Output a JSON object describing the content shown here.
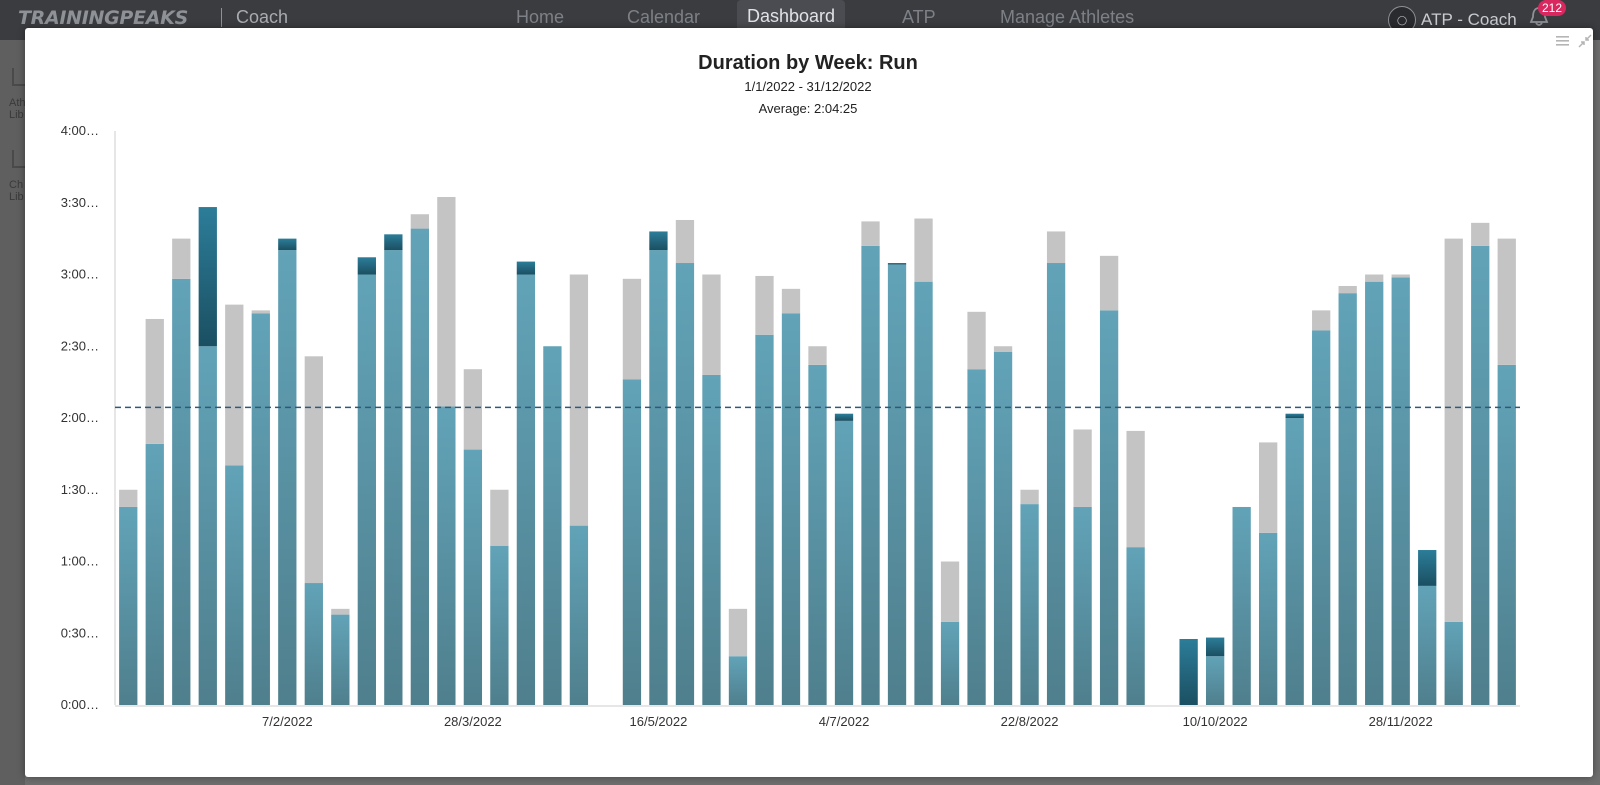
{
  "app": {
    "logo": "TRAININGPEAKS",
    "product": "Coach",
    "nav": [
      "Home",
      "Calendar",
      "Dashboard",
      "ATP",
      "Manage Athletes"
    ],
    "active_nav": "Dashboard",
    "user_label": "ATP - Coach",
    "notification_count": "212"
  },
  "sidebar": {
    "items": [
      {
        "label": "Ath",
        "label2": "Lib"
      },
      {
        "label": "Ch",
        "label2": "Lib"
      }
    ]
  },
  "colors": {
    "completed": "#5a9bb0",
    "over_plan": "#1f5f77",
    "planned": "#c4c4c4",
    "average_line": "#2e5a7a"
  },
  "chart_data": {
    "type": "bar",
    "title": "Duration by Week: Run",
    "subtitle": "1/1/2022 - 31/12/2022",
    "average_label": "Average: 2:04:25",
    "average_hours": 2.074,
    "ylim": [
      0,
      4
    ],
    "y_ticks": [
      {
        "value": 0,
        "label": "0:00…"
      },
      {
        "value": 0.5,
        "label": "0:30…"
      },
      {
        "value": 1,
        "label": "1:00…"
      },
      {
        "value": 1.5,
        "label": "1:30…"
      },
      {
        "value": 2,
        "label": "2:00…"
      },
      {
        "value": 2.5,
        "label": "2:30…"
      },
      {
        "value": 3,
        "label": "3:00…"
      },
      {
        "value": 3.5,
        "label": "3:30…"
      },
      {
        "value": 4,
        "label": "4:00…"
      }
    ],
    "x_ticks": [
      {
        "week": 6.5,
        "label": "7/2/2022"
      },
      {
        "week": 13.5,
        "label": "28/3/2022"
      },
      {
        "week": 20.5,
        "label": "16/5/2022"
      },
      {
        "week": 27.5,
        "label": "4/7/2022"
      },
      {
        "week": 34.5,
        "label": "22/8/2022"
      },
      {
        "week": 41.5,
        "label": "10/10/2022"
      },
      {
        "week": 48.5,
        "label": "28/11/2022"
      }
    ],
    "series": [
      {
        "key": "completed",
        "values": [
          1.38,
          1.82,
          2.97,
          2.5,
          1.67,
          2.73,
          3.17,
          0.85,
          0.63,
          3.0,
          3.17,
          3.32,
          2.08,
          1.78,
          1.11,
          3.0,
          2.5,
          1.25,
          0,
          2.27,
          3.17,
          3.08,
          2.3,
          0.34,
          2.58,
          2.73,
          2.37,
          1.98,
          3.2,
          3.07,
          2.95,
          0.58,
          2.34,
          2.46,
          1.4,
          3.08,
          1.38,
          2.75,
          1.1,
          0,
          0,
          0.34,
          1.38,
          1.2,
          2.0,
          2.61,
          2.87,
          2.95,
          2.98,
          0.83,
          0.58,
          3.2,
          2.37
        ]
      },
      {
        "key": "over_plan",
        "values": [
          0,
          0,
          0,
          0.97,
          0,
          0,
          0.08,
          0,
          0,
          0.12,
          0.11,
          0,
          0,
          0,
          0,
          0.09,
          0,
          0,
          0,
          0,
          0.13,
          0,
          0,
          0,
          0,
          0,
          0,
          0.05,
          0,
          0.01,
          0,
          0,
          0,
          0,
          0,
          0,
          0,
          0,
          0,
          0,
          0.46,
          0.13,
          0,
          0,
          0.03,
          0,
          0,
          0,
          0,
          0.25,
          0,
          0,
          0
        ]
      },
      {
        "key": "planned",
        "values": [
          0.12,
          0.87,
          0.28,
          0,
          1.12,
          0.02,
          0,
          1.58,
          0.04,
          0,
          0,
          0.1,
          1.46,
          0.56,
          0.39,
          0,
          0,
          1.75,
          0,
          0.7,
          0,
          0.3,
          0.7,
          0.33,
          0.41,
          0.17,
          0.13,
          0,
          0.17,
          0,
          0.44,
          0.42,
          0.4,
          0.04,
          0.1,
          0.22,
          0.54,
          0.38,
          0.81,
          0,
          0,
          0,
          0,
          0.63,
          0,
          0.14,
          0.05,
          0.05,
          0.02,
          0,
          2.67,
          0.16,
          0.88
        ]
      }
    ]
  }
}
